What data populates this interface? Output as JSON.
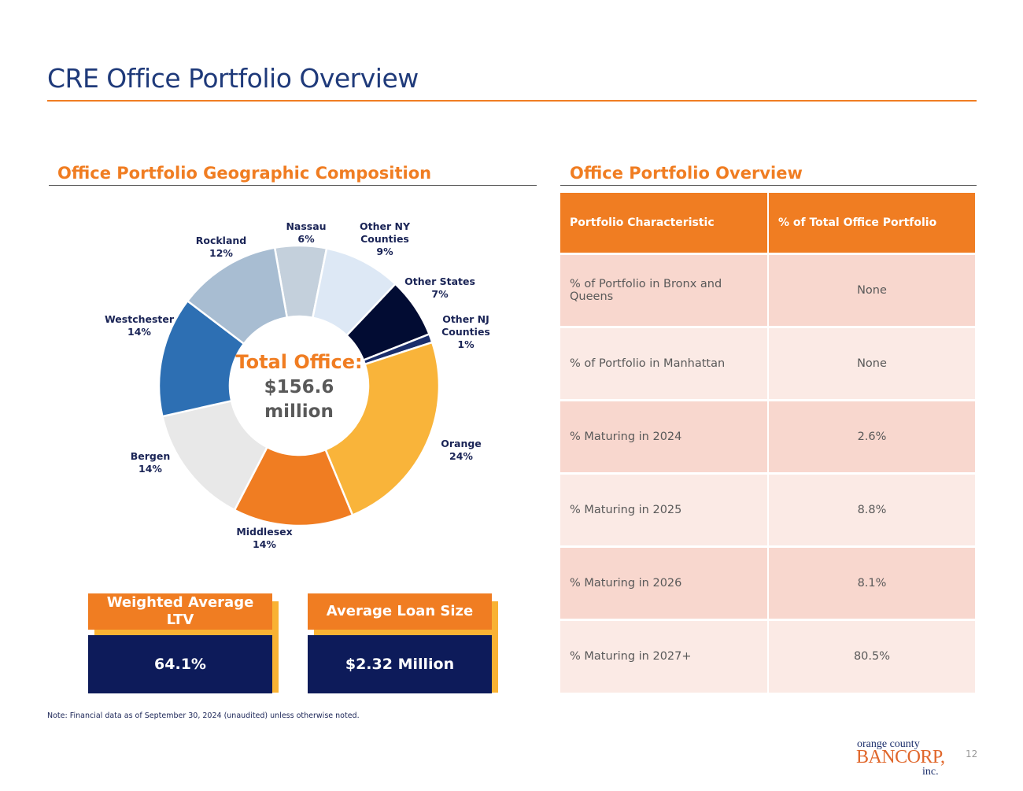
{
  "title": "CRE Office Portfolio Overview",
  "left_section": "Office Portfolio Geographic Composition",
  "right_section": "Office Portfolio Overview",
  "chart_data": {
    "type": "pie",
    "donut": true,
    "center_label": {
      "line1": "Total Office:",
      "line2": "$156.6",
      "line3": "million"
    },
    "categories": [
      "Nassau",
      "Other NY Counties",
      "Other States",
      "Other NJ Counties",
      "Orange",
      "Middlesex",
      "Bergen",
      "Westchester",
      "Rockland"
    ],
    "values": [
      6,
      9,
      7,
      1,
      24,
      14,
      14,
      14,
      12
    ],
    "value_labels": [
      "6%",
      "9%",
      "7%",
      "1%",
      "24%",
      "14%",
      "14%",
      "14%",
      "12%"
    ],
    "colors": [
      "#c4d0dc",
      "#dde8f5",
      "#020c33",
      "#1b2e6b",
      "#f9b43a",
      "#f07d22",
      "#e8e8e8",
      "#2d6fb3",
      "#a8bdd2"
    ]
  },
  "kpis": [
    {
      "label": "Weighted Average LTV",
      "value": "64.1%"
    },
    {
      "label": "Average Loan Size",
      "value": "$2.32 Million"
    }
  ],
  "table": {
    "headers": [
      "Portfolio Characteristic",
      "% of Total Office Portfolio"
    ],
    "rows": [
      [
        "% of Portfolio in Bronx and Queens",
        "None"
      ],
      [
        "% of Portfolio in Manhattan",
        "None"
      ],
      [
        "% Maturing in 2024",
        "2.6%"
      ],
      [
        "% Maturing in 2025",
        "8.8%"
      ],
      [
        "% Maturing in 2026",
        "8.1%"
      ],
      [
        "% Maturing in 2027+",
        "80.5%"
      ]
    ]
  },
  "note": "Note: Financial data as of September 30, 2024 (unaudited) unless otherwise noted.",
  "logo": {
    "line1": "orange county",
    "line2": "BANCORP,",
    "line3": "inc."
  },
  "page_number": "12"
}
